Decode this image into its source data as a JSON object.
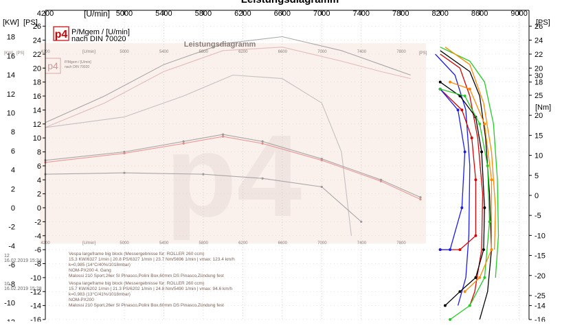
{
  "chart_data": [
    {
      "type": "line",
      "title": "Leistungsdiagramm",
      "xlabel": "[U/min]",
      "ylabel_left_outer": "[KW]",
      "ylabel_left_inner": "[PS]",
      "ylabel_right_upper": "[PS]",
      "ylabel_right_lower": "[Nm]",
      "x_ticks": [
        4200,
        5000,
        5400,
        5800,
        6200,
        6600,
        7000,
        7400,
        7800,
        8200,
        8600,
        9000
      ],
      "xlim": [
        4200,
        9100
      ],
      "ylim_ps": [
        -16,
        27
      ],
      "ylim_nm": [
        -31,
        44
      ],
      "legend": {
        "logo": "p4",
        "line1": "P/Mgem / [U/min]",
        "line2": "nach DIN 70020"
      },
      "kw_ticks": [
        18,
        16,
        14,
        12,
        10,
        8,
        6,
        4,
        2,
        0,
        -2,
        -4,
        -6,
        -8,
        -10,
        -12
      ],
      "ps_ticks": [
        26,
        24,
        22,
        20,
        18,
        16,
        14,
        12,
        10,
        8,
        6,
        4,
        2,
        0,
        -2,
        -4,
        -6,
        -8,
        -10,
        -12,
        -14,
        -16
      ],
      "right_ps_ticks": [
        26,
        24,
        22,
        20,
        18,
        -14,
        -16
      ],
      "nm_ticks": [
        30,
        25,
        20,
        15,
        10,
        5,
        0,
        -5,
        -10,
        -15,
        -20,
        -25
      ],
      "series": [
        {
          "color": "#000000",
          "kind": "power",
          "x": [
            8200,
            8500,
            8600,
            8660,
            8700,
            8720,
            8680,
            8600
          ],
          "y": [
            22.5,
            19.5,
            16,
            10,
            2,
            -6,
            -12,
            -16
          ]
        },
        {
          "color": "#dd0000",
          "kind": "power",
          "x": [
            8200,
            8400,
            8500,
            8580,
            8630,
            8620,
            8550,
            8500
          ],
          "y": [
            22,
            20,
            16,
            10,
            2,
            -6,
            -12,
            -14
          ]
        },
        {
          "color": "#1a1aee",
          "kind": "power",
          "x": [
            8150,
            8350,
            8460,
            8500,
            8490,
            8460,
            8380
          ],
          "y": [
            22,
            19,
            14,
            6,
            -4,
            -10,
            -14
          ]
        },
        {
          "color": "#22cc22",
          "kind": "power",
          "x": [
            8200,
            8500,
            8650,
            8740,
            8780,
            8790,
            8760
          ],
          "y": [
            23,
            21,
            18,
            12,
            4,
            -4,
            -10
          ]
        },
        {
          "color": "#ff8800",
          "kind": "power",
          "x": [
            8250,
            8500,
            8640,
            8720,
            8760,
            8750
          ],
          "y": [
            23,
            20.5,
            15,
            8,
            0,
            -6
          ]
        },
        {
          "color": "#000000",
          "kind": "torque",
          "x": [
            8200,
            8400,
            8560,
            8620,
            8650,
            8640,
            8560,
            8400,
            8250
          ],
          "y": [
            18,
            16,
            13,
            8,
            0,
            -6,
            -10,
            -12,
            -14
          ]
        },
        {
          "color": "#dd0000",
          "kind": "torque",
          "x": [
            8200,
            8420,
            8520,
            8560,
            8560,
            8400,
            8200
          ],
          "y": [
            17,
            14,
            10,
            4,
            -4,
            -6,
            -6
          ]
        },
        {
          "color": "#1a1aee",
          "kind": "torque",
          "x": [
            8200,
            8380,
            8450,
            8420,
            8300,
            8200
          ],
          "y": [
            17,
            14,
            8,
            0,
            -6,
            -6
          ]
        },
        {
          "color": "#22cc22",
          "kind": "torque",
          "x": [
            8200,
            8450,
            8600,
            8680,
            8700,
            8650,
            8500,
            8300
          ],
          "y": [
            17,
            16,
            12,
            6,
            -2,
            -10,
            -14,
            -16
          ]
        },
        {
          "color": "#ff8800",
          "kind": "torque",
          "x": [
            8300,
            8500,
            8650,
            8720,
            8720,
            8600,
            8450
          ],
          "y": [
            18,
            17,
            12,
            4,
            -6,
            -10,
            -12
          ]
        }
      ],
      "ghost_series": [
        {
          "color": "#9a9a9a",
          "x": [
            4200,
            4800,
            5400,
            6000,
            6600,
            7200,
            7600,
            7900
          ],
          "y": [
            12.2,
            16,
            20.5,
            23.5,
            24.5,
            22.5,
            20.5,
            19
          ]
        },
        {
          "color": "#dfb2b2",
          "x": [
            4200,
            4800,
            5400,
            6000,
            6600,
            7200,
            7600,
            7900
          ],
          "y": [
            11.5,
            15,
            19.5,
            22.5,
            23,
            21,
            19.5,
            18.5
          ]
        },
        {
          "color": "#b8b8b8",
          "x": [
            4200,
            5000,
            5600,
            6100,
            6600,
            7000,
            7200,
            7300
          ],
          "y": [
            11.5,
            13,
            16,
            19,
            18.5,
            15,
            8,
            -4
          ]
        },
        {
          "color": "#9a9a9a",
          "x": [
            4200,
            5000,
            5600,
            6000,
            6400,
            7000,
            7600,
            8000
          ],
          "y": [
            6.8,
            8,
            9.5,
            10.5,
            9.5,
            7,
            4,
            1.5
          ]
        },
        {
          "color": "#e68a8a",
          "x": [
            4200,
            5000,
            5600,
            6000,
            6400,
            7000,
            7600,
            8000
          ],
          "y": [
            6.5,
            7.8,
            9.2,
            10.2,
            9.2,
            6.8,
            3.8,
            1.2
          ]
        },
        {
          "color": "#9a9a9a",
          "x": [
            4200,
            5000,
            5800,
            6400,
            7000,
            7400
          ],
          "y": [
            4.8,
            5,
            4.8,
            4.2,
            3,
            -2
          ]
        }
      ],
      "ghost_copy": {
        "title": "Leistungsdiagramm",
        "legend_line1": "P/Mgem / [U/min]",
        "legend_line2": "nach DIN 70020",
        "x_ticks": [
          4200,
          5000,
          5400,
          5800,
          6200,
          6600,
          7000,
          7400,
          7800
        ],
        "unit": "[U/min]",
        "unit_kw": "[KW]",
        "unit_ps": "[PS]"
      },
      "notes": [
        {
          "timestamp": "16.02.2019 15:34",
          "side_number": "12",
          "lines": [
            "Vespa largeframe big block (Messergebnisse für: ROLLER 260 ccm)",
            "15.3 KW/6327 1/min  |  20.8 PS/6327 1/min  |  23.7 Nm/5696 1/min  |  vmax: 123.4 km/h",
            "k=0,985 (14°C/40%/1018mbar)",
            "NOM-PX200 4. Gang",
            "Malossi 210 Sport,26er SI Pinasco,Polini Box,60mm DS Pinasco,Zündung fest"
          ]
        },
        {
          "timestamp": "16.02.2019 15:28",
          "side_number": "10",
          "lines": [
            "Vespa largeframe big block (Messergebnisse für: ROLLER 260 ccm)",
            "15.7 KW/6202 1/min  |  21.3 PS/6202 1/min  |  24.8 Nm/5490 1/min  |  vmax: 94.6 km/h",
            "k=0,983 (13°C/41%/1018mbar)",
            "NOM-PX200",
            "Malossi 210 Sport,26er SI Pinasco,Polini Box,60mm DS Pinasco,Zündung fest"
          ]
        }
      ]
    }
  ]
}
